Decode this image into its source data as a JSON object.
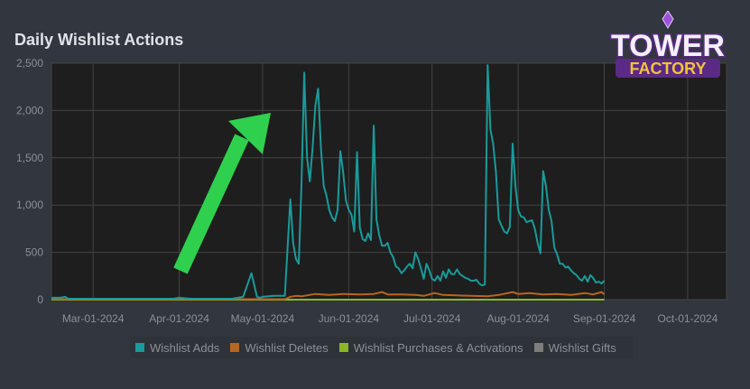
{
  "logo_text": [
    "TOWER",
    "FACTORY"
  ],
  "chart_data": {
    "type": "line",
    "title": "Daily Wishlist Actions",
    "xlabel": "",
    "ylabel": "",
    "ylim": [
      0,
      2500
    ],
    "yticks": [
      0,
      500,
      1000,
      1500,
      2000,
      2500
    ],
    "ytick_labels": [
      "0",
      "500",
      "1,000",
      "1,500",
      "2,000",
      "2,500"
    ],
    "x_range": [
      "2024-02-15",
      "2024-10-15"
    ],
    "xticks": [
      "2024-03-01",
      "2024-04-01",
      "2024-05-01",
      "2024-06-01",
      "2024-07-01",
      "2024-08-01",
      "2024-09-01",
      "2024-10-01"
    ],
    "xtick_labels": [
      "Mar-01-2024",
      "Apr-01-2024",
      "May-01-2024",
      "Jun-01-2024",
      "Jul-01-2024",
      "Aug-01-2024",
      "Sep-01-2024",
      "Oct-01-2024"
    ],
    "grid": true,
    "legend_position": "bottom",
    "annotation": "green arrow pointing up toward May-2024 rise",
    "series": [
      {
        "name": "Wishlist Adds",
        "color": "#1a9a9a",
        "points": [
          [
            "2024-02-15",
            20
          ],
          [
            "2024-02-18",
            20
          ],
          [
            "2024-02-20",
            30
          ],
          [
            "2024-02-21",
            10
          ],
          [
            "2024-02-24",
            10
          ],
          [
            "2024-03-01",
            10
          ],
          [
            "2024-03-20",
            10
          ],
          [
            "2024-03-30",
            10
          ],
          [
            "2024-04-01",
            20
          ],
          [
            "2024-04-05",
            10
          ],
          [
            "2024-04-20",
            10
          ],
          [
            "2024-04-24",
            30
          ],
          [
            "2024-04-27",
            280
          ],
          [
            "2024-04-29",
            30
          ],
          [
            "2024-04-30",
            20
          ],
          [
            "2024-05-01",
            30
          ],
          [
            "2024-05-05",
            40
          ],
          [
            "2024-05-09",
            40
          ],
          [
            "2024-05-11",
            1060
          ],
          [
            "2024-05-12",
            600
          ],
          [
            "2024-05-13",
            430
          ],
          [
            "2024-05-14",
            380
          ],
          [
            "2024-05-15",
            1200
          ],
          [
            "2024-05-16",
            2400
          ],
          [
            "2024-05-17",
            1500
          ],
          [
            "2024-05-18",
            1250
          ],
          [
            "2024-05-19",
            1600
          ],
          [
            "2024-05-20",
            2050
          ],
          [
            "2024-05-21",
            2230
          ],
          [
            "2024-05-22",
            1600
          ],
          [
            "2024-05-23",
            1200
          ],
          [
            "2024-05-24",
            1100
          ],
          [
            "2024-05-25",
            950
          ],
          [
            "2024-05-26",
            870
          ],
          [
            "2024-05-27",
            830
          ],
          [
            "2024-05-28",
            950
          ],
          [
            "2024-05-29",
            1570
          ],
          [
            "2024-05-30",
            1350
          ],
          [
            "2024-05-31",
            1050
          ],
          [
            "2024-06-01",
            950
          ],
          [
            "2024-06-02",
            900
          ],
          [
            "2024-06-03",
            720
          ],
          [
            "2024-06-04",
            1560
          ],
          [
            "2024-06-05",
            760
          ],
          [
            "2024-06-06",
            640
          ],
          [
            "2024-06-07",
            620
          ],
          [
            "2024-06-08",
            700
          ],
          [
            "2024-06-09",
            630
          ],
          [
            "2024-06-10",
            1840
          ],
          [
            "2024-06-11",
            850
          ],
          [
            "2024-06-12",
            680
          ],
          [
            "2024-06-13",
            570
          ],
          [
            "2024-06-14",
            570
          ],
          [
            "2024-06-15",
            600
          ],
          [
            "2024-06-16",
            500
          ],
          [
            "2024-06-17",
            450
          ],
          [
            "2024-06-18",
            350
          ],
          [
            "2024-06-19",
            330
          ],
          [
            "2024-06-20",
            280
          ],
          [
            "2024-06-21",
            310
          ],
          [
            "2024-06-22",
            350
          ],
          [
            "2024-06-23",
            380
          ],
          [
            "2024-06-24",
            330
          ],
          [
            "2024-06-25",
            500
          ],
          [
            "2024-06-26",
            430
          ],
          [
            "2024-06-27",
            330
          ],
          [
            "2024-06-28",
            220
          ],
          [
            "2024-06-29",
            380
          ],
          [
            "2024-06-30",
            310
          ],
          [
            "2024-07-01",
            220
          ],
          [
            "2024-07-02",
            200
          ],
          [
            "2024-07-03",
            250
          ],
          [
            "2024-07-04",
            200
          ],
          [
            "2024-07-05",
            300
          ],
          [
            "2024-07-06",
            230
          ],
          [
            "2024-07-07",
            320
          ],
          [
            "2024-07-08",
            270
          ],
          [
            "2024-07-09",
            270
          ],
          [
            "2024-07-10",
            320
          ],
          [
            "2024-07-11",
            270
          ],
          [
            "2024-07-12",
            250
          ],
          [
            "2024-07-13",
            230
          ],
          [
            "2024-07-14",
            220
          ],
          [
            "2024-07-15",
            200
          ],
          [
            "2024-07-16",
            200
          ],
          [
            "2024-07-17",
            210
          ],
          [
            "2024-07-18",
            170
          ],
          [
            "2024-07-19",
            150
          ],
          [
            "2024-07-20",
            160
          ],
          [
            "2024-07-21",
            2480
          ],
          [
            "2024-07-22",
            1800
          ],
          [
            "2024-07-23",
            1650
          ],
          [
            "2024-07-24",
            1350
          ],
          [
            "2024-07-25",
            850
          ],
          [
            "2024-07-26",
            780
          ],
          [
            "2024-07-27",
            720
          ],
          [
            "2024-07-28",
            700
          ],
          [
            "2024-07-29",
            770
          ],
          [
            "2024-07-30",
            1650
          ],
          [
            "2024-07-31",
            1200
          ],
          [
            "2024-08-01",
            950
          ],
          [
            "2024-08-02",
            880
          ],
          [
            "2024-08-03",
            870
          ],
          [
            "2024-08-04",
            820
          ],
          [
            "2024-08-05",
            830
          ],
          [
            "2024-08-06",
            840
          ],
          [
            "2024-08-07",
            750
          ],
          [
            "2024-08-08",
            600
          ],
          [
            "2024-08-09",
            490
          ],
          [
            "2024-08-10",
            1360
          ],
          [
            "2024-08-11",
            1200
          ],
          [
            "2024-08-12",
            950
          ],
          [
            "2024-08-13",
            830
          ],
          [
            "2024-08-14",
            550
          ],
          [
            "2024-08-15",
            480
          ],
          [
            "2024-08-16",
            380
          ],
          [
            "2024-08-17",
            380
          ],
          [
            "2024-08-18",
            340
          ],
          [
            "2024-08-19",
            350
          ],
          [
            "2024-08-20",
            310
          ],
          [
            "2024-08-21",
            280
          ],
          [
            "2024-08-22",
            260
          ],
          [
            "2024-08-23",
            220
          ],
          [
            "2024-08-24",
            200
          ],
          [
            "2024-08-25",
            250
          ],
          [
            "2024-08-26",
            190
          ],
          [
            "2024-08-27",
            260
          ],
          [
            "2024-08-28",
            230
          ],
          [
            "2024-08-29",
            180
          ],
          [
            "2024-08-30",
            190
          ],
          [
            "2024-08-31",
            170
          ],
          [
            "2024-09-01",
            200
          ]
        ]
      },
      {
        "name": "Wishlist Deletes",
        "color": "#b8651d",
        "points": [
          [
            "2024-02-15",
            5
          ],
          [
            "2024-05-09",
            5
          ],
          [
            "2024-05-11",
            30
          ],
          [
            "2024-05-13",
            40
          ],
          [
            "2024-05-15",
            35
          ],
          [
            "2024-05-20",
            60
          ],
          [
            "2024-05-25",
            50
          ],
          [
            "2024-05-30",
            60
          ],
          [
            "2024-06-05",
            55
          ],
          [
            "2024-06-10",
            60
          ],
          [
            "2024-06-13",
            80
          ],
          [
            "2024-06-15",
            55
          ],
          [
            "2024-06-20",
            55
          ],
          [
            "2024-06-25",
            50
          ],
          [
            "2024-06-28",
            40
          ],
          [
            "2024-07-02",
            70
          ],
          [
            "2024-07-05",
            50
          ],
          [
            "2024-07-10",
            45
          ],
          [
            "2024-07-15",
            40
          ],
          [
            "2024-07-21",
            35
          ],
          [
            "2024-07-25",
            50
          ],
          [
            "2024-07-30",
            80
          ],
          [
            "2024-08-01",
            60
          ],
          [
            "2024-08-05",
            70
          ],
          [
            "2024-08-10",
            55
          ],
          [
            "2024-08-15",
            60
          ],
          [
            "2024-08-20",
            50
          ],
          [
            "2024-08-25",
            70
          ],
          [
            "2024-08-28",
            55
          ],
          [
            "2024-08-31",
            80
          ],
          [
            "2024-09-01",
            55
          ]
        ]
      },
      {
        "name": "Wishlist Purchases & Activations",
        "color": "#8bb71f",
        "points": [
          [
            "2024-02-15",
            0
          ],
          [
            "2024-09-01",
            0
          ]
        ]
      },
      {
        "name": "Wishlist Gifts",
        "color": "#7d7d7d",
        "points": [
          [
            "2024-02-15",
            0
          ],
          [
            "2024-09-01",
            0
          ]
        ]
      }
    ]
  }
}
